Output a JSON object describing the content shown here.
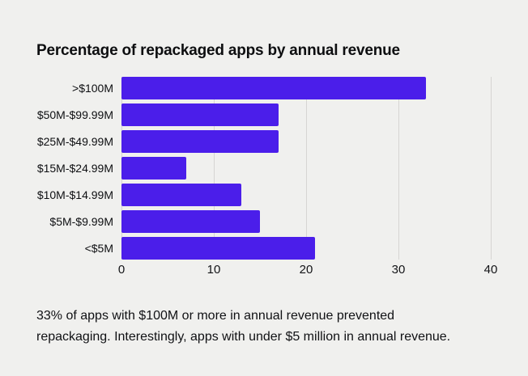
{
  "page": {
    "background": "#f0f0ee"
  },
  "header": {
    "title": "Percentage of repackaged apps by annual revenue"
  },
  "chart_data": {
    "type": "bar",
    "orientation": "horizontal",
    "title": "Percentage of repackaged apps by annual revenue",
    "categories": [
      ">$100M",
      "$50M-$99.99M",
      "$25M-$49.99M",
      "$15M-$24.99M",
      "$10M-$14.99M",
      "$5M-$9.99M",
      "<$5M"
    ],
    "values": [
      33,
      17,
      17,
      7,
      13,
      15,
      21
    ],
    "xlabel": "",
    "ylabel": "",
    "xlim": [
      0,
      40
    ],
    "xticks": [
      0,
      10,
      20,
      30,
      40
    ],
    "grid": true,
    "legend": false,
    "bar_color": "#4b1eea",
    "gridline_color": "#d6d5d3"
  },
  "caption": {
    "line1": "33% of apps with $100M or more in annual revenue prevented",
    "line2": "repackaging. Interestingly, apps with under $5 million in annual revenue."
  }
}
